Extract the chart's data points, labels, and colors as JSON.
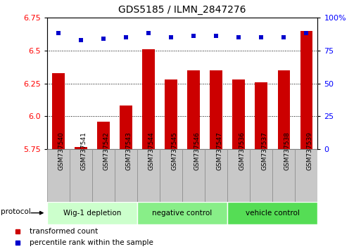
{
  "title": "GDS5185 / ILMN_2847276",
  "samples": [
    "GSM737540",
    "GSM737541",
    "GSM737542",
    "GSM737543",
    "GSM737544",
    "GSM737545",
    "GSM737546",
    "GSM737547",
    "GSM737536",
    "GSM737537",
    "GSM737538",
    "GSM737539"
  ],
  "transformed_counts": [
    6.33,
    5.77,
    5.96,
    6.08,
    6.51,
    6.28,
    6.35,
    6.35,
    6.28,
    6.26,
    6.35,
    6.65
  ],
  "percentile_ranks": [
    88,
    83,
    84,
    85,
    88,
    85,
    86,
    86,
    85,
    85,
    85,
    88
  ],
  "ylim_left": [
    5.75,
    6.75
  ],
  "ylim_right": [
    0,
    100
  ],
  "yticks_left": [
    5.75,
    6.0,
    6.25,
    6.5,
    6.75
  ],
  "yticks_right": [
    0,
    25,
    50,
    75,
    100
  ],
  "groups": [
    {
      "label": "Wig-1 depletion",
      "start": 0,
      "end": 3,
      "color": "#ccffcc"
    },
    {
      "label": "negative control",
      "start": 4,
      "end": 7,
      "color": "#88ee88"
    },
    {
      "label": "vehicle control",
      "start": 8,
      "end": 11,
      "color": "#55dd55"
    }
  ],
  "bar_color": "#cc0000",
  "dot_color": "#0000cc",
  "plot_bg": "#ffffff",
  "gridline_style": "dotted",
  "legend_red_label": "transformed count",
  "legend_blue_label": "percentile rank within the sample",
  "protocol_label": "protocol",
  "sample_box_color": "#c8c8c8",
  "sample_box_edge": "#888888"
}
